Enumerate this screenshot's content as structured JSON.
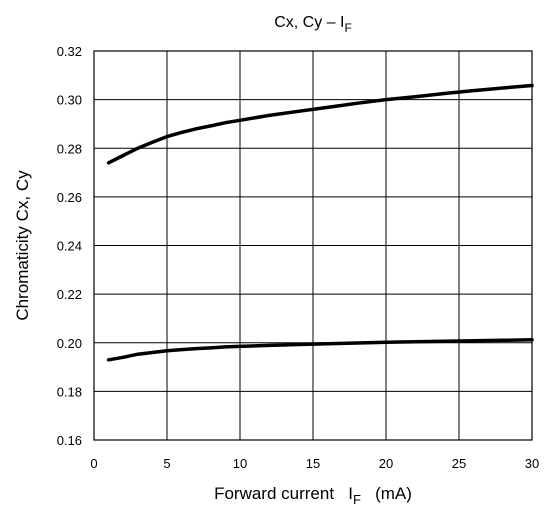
{
  "chart_data": {
    "type": "line",
    "title": "Cx, Cy – I",
    "title_subscript": "F",
    "xlabel": "Forward current   I",
    "xlabel_subscript": "F",
    "xlabel_suffix": "   (mA)",
    "ylabel": "Chromaticity Cx, Cy",
    "xlim": [
      0,
      30
    ],
    "ylim": [
      0.16,
      0.32
    ],
    "x_ticks": [
      "0",
      "5",
      "10",
      "15",
      "20",
      "25",
      "30"
    ],
    "y_ticks": [
      "0.16",
      "0.18",
      "0.20",
      "0.22",
      "0.24",
      "0.26",
      "0.28",
      "0.30",
      "0.32"
    ],
    "grid": true,
    "series": [
      {
        "x": [
          1,
          2,
          3,
          4,
          5,
          6,
          7,
          8,
          9,
          10,
          12,
          14,
          16,
          18,
          20,
          22,
          24,
          26,
          28,
          30
        ],
        "values": [
          0.274,
          0.277,
          0.28,
          0.2825,
          0.2848,
          0.2865,
          0.288,
          0.2892,
          0.2905,
          0.2915,
          0.2935,
          0.2952,
          0.2968,
          0.2985,
          0.3,
          0.3012,
          0.3025,
          0.3037,
          0.3048,
          0.3058
        ]
      },
      {
        "x": [
          1,
          2,
          3,
          4,
          5,
          6,
          7,
          8,
          9,
          10,
          12,
          14,
          16,
          18,
          20,
          22,
          24,
          26,
          28,
          30
        ],
        "values": [
          0.193,
          0.194,
          0.1953,
          0.196,
          0.1967,
          0.1972,
          0.1976,
          0.1979,
          0.1983,
          0.1985,
          0.1989,
          0.1993,
          0.1996,
          0.1999,
          0.2002,
          0.2004,
          0.2006,
          0.2008,
          0.201,
          0.2012
        ]
      }
    ]
  }
}
